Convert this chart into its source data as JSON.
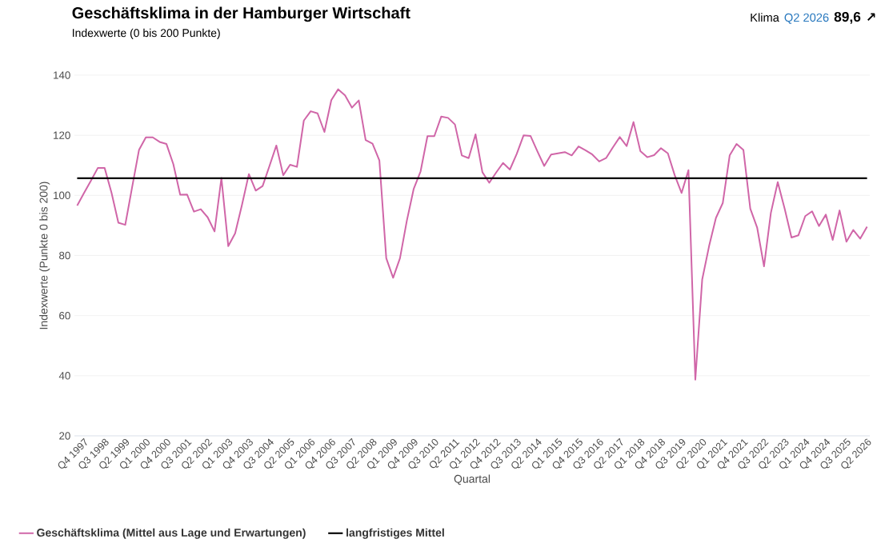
{
  "chart_data": {
    "type": "line",
    "title": "Geschäftsklima in der Hamburger Wirtschaft",
    "subtitle": "Indexwerte (0 bis 200 Punkte)",
    "xlabel": "Quartal",
    "ylabel": "Indexwerte (Punkte 0 bis 200)",
    "annotations": [
      "Klima",
      "Q2 2026",
      "89,6",
      "↗"
    ],
    "categories": [
      null,
      "Q4 1997",
      null,
      null,
      "Q3 1998",
      null,
      null,
      "Q2 1999",
      null,
      null,
      "Q1 2000",
      null,
      null,
      "Q4 2000",
      null,
      null,
      "Q3 2001",
      null,
      null,
      "Q2 2002",
      null,
      null,
      "Q1 2003",
      null,
      null,
      "Q4 2003",
      null,
      null,
      "Q3 2004",
      null,
      null,
      "Q2 2005",
      null,
      null,
      "Q1 2006",
      null,
      null,
      "Q4 2006",
      null,
      null,
      "Q3 2007",
      null,
      null,
      "Q2 2008",
      null,
      null,
      "Q1 2009",
      null,
      null,
      "Q4 2009",
      null,
      null,
      "Q3 2010",
      null,
      null,
      "Q2 2011",
      null,
      null,
      "Q1 2012",
      null,
      null,
      "Q4 2012",
      null,
      null,
      "Q3 2013",
      null,
      null,
      "Q2 2014",
      null,
      null,
      "Q1 2015",
      null,
      null,
      "Q4 2015",
      null,
      null,
      "Q3 2016",
      null,
      null,
      "Q2 2017",
      null,
      null,
      "Q1 2018",
      null,
      null,
      "Q4 2018",
      null,
      null,
      "Q3 2019",
      null,
      null,
      "Q2 2020",
      null,
      null,
      "Q1 2021",
      null,
      null,
      "Q4 2021",
      null,
      null,
      "Q3 2022",
      null,
      null,
      "Q2 2023",
      null,
      null,
      "Q1 2024",
      null,
      null,
      "Q4 2024",
      null,
      null,
      "Q3 2025",
      null,
      null,
      "Q2 2026"
    ],
    "series": [
      {
        "name": "Geschäftsklima (Mittel aus Lage und Erwartungen)",
        "color": "#d066a8",
        "values": [
          96.6,
          100.8,
          104.9,
          109.1,
          109.1,
          100.9,
          90.9,
          90.2,
          102.7,
          115.1,
          119.3,
          119.3,
          117.8,
          117.1,
          110.4,
          100.2,
          100.3,
          94.6,
          95.4,
          92.7,
          88.0,
          105.8,
          83.1,
          87.4,
          96.9,
          107.1,
          101.6,
          103.1,
          109.8,
          116.6,
          106.7,
          110.2,
          109.5,
          124.9,
          128.0,
          127.3,
          121.1,
          131.7,
          135.3,
          133.3,
          129.2,
          131.6,
          118.4,
          117.2,
          111.6,
          79.1,
          72.6,
          79.1,
          91.6,
          102.2,
          108.0,
          119.7,
          119.7,
          126.2,
          125.8,
          123.6,
          113.3,
          112.4,
          120.3,
          107.7,
          104.2,
          107.6,
          110.8,
          108.6,
          113.8,
          120.0,
          119.8,
          114.7,
          109.8,
          113.6,
          114.0,
          114.4,
          113.3,
          116.3,
          115.0,
          113.6,
          111.3,
          112.4,
          116.0,
          119.4,
          116.4,
          124.4,
          114.7,
          112.7,
          113.4,
          115.7,
          114.0,
          106.7,
          100.8,
          108.4,
          38.7,
          72.0,
          83.1,
          92.5,
          97.5,
          113.3,
          117.1,
          115.1,
          95.6,
          89.3,
          76.4,
          94.2,
          104.4,
          95.6,
          86.0,
          86.7,
          93.1,
          94.7,
          89.8,
          93.6,
          85.2,
          95.0,
          84.6,
          88.5,
          85.6,
          89.6
        ]
      }
    ],
    "ref_lines": [
      {
        "axis": "y",
        "value": 105.7,
        "label": "langfristiges Mittel",
        "color": "#000000"
      }
    ],
    "ylim": [
      20,
      140
    ],
    "yticks": [
      20,
      40,
      60,
      80,
      100,
      120,
      140
    ],
    "grid": "y",
    "legend": "bottom left",
    "marker": "none",
    "line_style": "solid"
  }
}
